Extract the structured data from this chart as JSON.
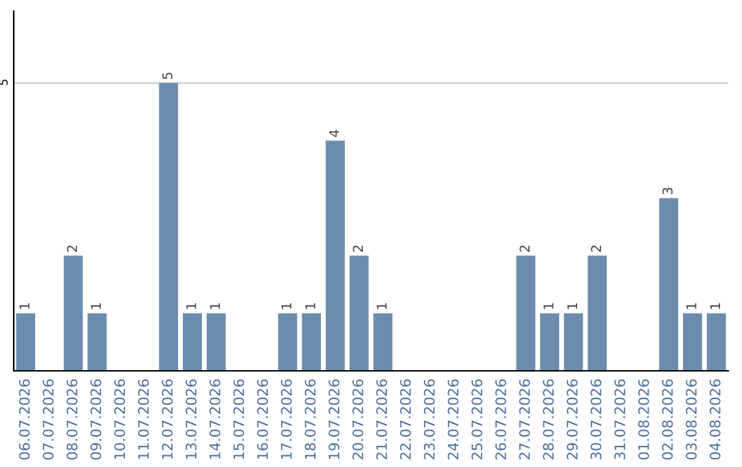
{
  "chart_data": {
    "type": "bar",
    "categories": [
      "06.07.2026",
      "07.07.2026",
      "08.07.2026",
      "09.07.2026",
      "10.07.2026",
      "11.07.2026",
      "12.07.2026",
      "13.07.2026",
      "14.07.2026",
      "15.07.2026",
      "16.07.2026",
      "17.07.2026",
      "18.07.2026",
      "19.07.2026",
      "20.07.2026",
      "21.07.2026",
      "22.07.2026",
      "23.07.2026",
      "24.07.2026",
      "25.07.2026",
      "26.07.2026",
      "27.07.2026",
      "28.07.2026",
      "29.07.2026",
      "30.07.2026",
      "31.07.2026",
      "01.08.2026",
      "02.08.2026",
      "03.08.2026",
      "04.08.2026"
    ],
    "values": [
      1,
      0,
      2,
      1,
      0,
      0,
      5,
      1,
      1,
      0,
      0,
      1,
      1,
      4,
      2,
      1,
      0,
      0,
      0,
      0,
      0,
      2,
      1,
      1,
      2,
      0,
      0,
      3,
      1,
      1
    ],
    "value_labels": [
      "1",
      null,
      "2",
      "1",
      null,
      null,
      "5",
      "1",
      "1",
      null,
      null,
      "1",
      "1",
      "4",
      "2",
      "1",
      null,
      null,
      null,
      null,
      null,
      "2",
      "1",
      "1",
      "2",
      null,
      null,
      "3",
      "1",
      "1"
    ],
    "color": "#6b8cad",
    "ylim": [
      0,
      6.25
    ],
    "yticks": [
      5
    ],
    "grid": "y",
    "legend": false
  }
}
